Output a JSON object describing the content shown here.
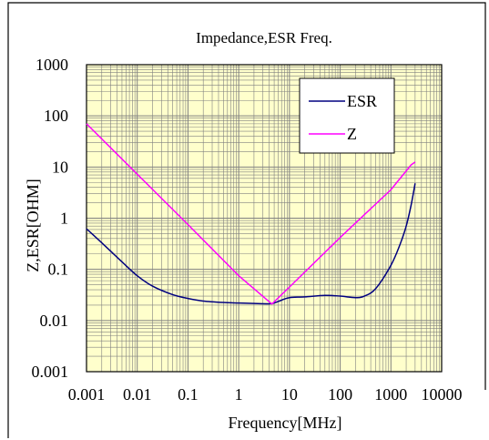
{
  "chart_data": {
    "type": "line",
    "title": "Impedance,ESR Freq.",
    "xlabel": "Frequency[MHz]",
    "ylabel": "Z,ESR[OHM]",
    "xscale": "log",
    "yscale": "log",
    "xlim": [
      0.001,
      10000
    ],
    "ylim": [
      0.001,
      1000
    ],
    "grid": true,
    "plot_background": "#ffffcc",
    "grid_color": "#808080",
    "legend": "top-right",
    "xticks": [
      "0.001",
      "0.01",
      "0.1",
      "1",
      "10",
      "100",
      "1000",
      "10000"
    ],
    "yticks": [
      "0.001",
      "0.01",
      "0.1",
      "1",
      "10",
      "100",
      "1000"
    ],
    "series": [
      {
        "name": "ESR",
        "color": "#000080",
        "points": [
          [
            0.001,
            0.62
          ],
          [
            0.002,
            0.33
          ],
          [
            0.005,
            0.14
          ],
          [
            0.01,
            0.075
          ],
          [
            0.02,
            0.047
          ],
          [
            0.05,
            0.032
          ],
          [
            0.1,
            0.027
          ],
          [
            0.2,
            0.024
          ],
          [
            0.5,
            0.0225
          ],
          [
            1,
            0.022
          ],
          [
            2,
            0.0215
          ],
          [
            4,
            0.0212
          ],
          [
            5,
            0.022
          ],
          [
            7,
            0.025
          ],
          [
            10,
            0.028
          ],
          [
            20,
            0.029
          ],
          [
            50,
            0.031
          ],
          [
            100,
            0.03
          ],
          [
            200,
            0.028
          ],
          [
            300,
            0.03
          ],
          [
            500,
            0.042
          ],
          [
            1000,
            0.12
          ],
          [
            1500,
            0.3
          ],
          [
            2000,
            0.7
          ],
          [
            2500,
            1.8
          ],
          [
            3000,
            4.8
          ]
        ]
      },
      {
        "name": "Z",
        "color": "#ff00ff",
        "points": [
          [
            0.001,
            70
          ],
          [
            0.1,
            0.75
          ],
          [
            1,
            0.075
          ],
          [
            4.5,
            0.021
          ],
          [
            10,
            0.045
          ],
          [
            100,
            0.42
          ],
          [
            1000,
            3.6
          ],
          [
            2500,
            11
          ],
          [
            3000,
            12.5
          ]
        ]
      }
    ]
  }
}
